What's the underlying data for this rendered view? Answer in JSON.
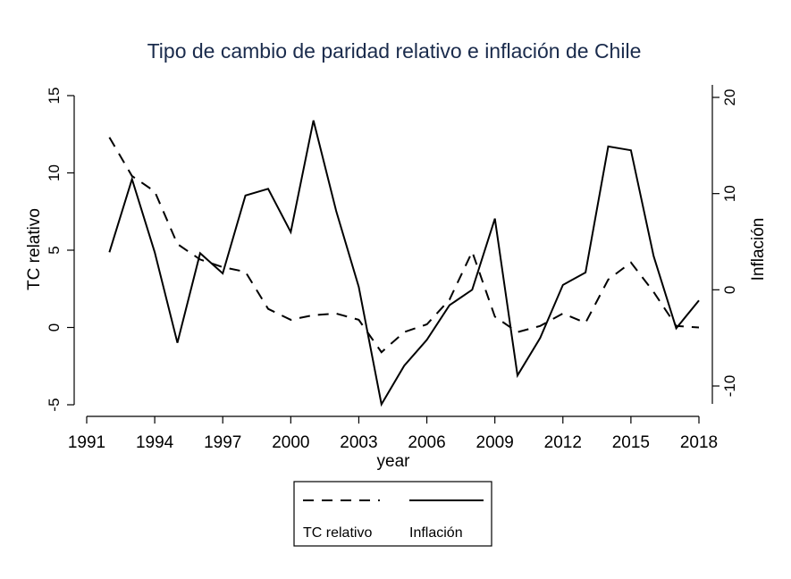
{
  "chart_data": {
    "type": "line",
    "title": "Tipo de cambio de paridad relativo e inflación de Chile",
    "xlabel": "year",
    "ylabel": "TC relativo",
    "y2label": "Inflación",
    "xlim": [
      1991,
      2018
    ],
    "ylim": [
      -5,
      15
    ],
    "y2lim": [
      -10,
      20
    ],
    "x_ticks": [
      1991,
      1994,
      1997,
      2000,
      2003,
      2006,
      2009,
      2012,
      2015,
      2018
    ],
    "y_ticks": [
      -5,
      0,
      5,
      10,
      15
    ],
    "y2_ticks": [
      -10,
      0,
      10,
      20
    ],
    "grid": false,
    "legend_position": "bottom",
    "x": [
      1992,
      1993,
      1994,
      1995,
      1996,
      1997,
      1998,
      1999,
      2000,
      2001,
      2002,
      2003,
      2004,
      2005,
      2006,
      2007,
      2008,
      2009,
      2010,
      2011,
      2012,
      2013,
      2014,
      2015,
      2016,
      2017,
      2018
    ],
    "series": [
      {
        "name": "TC relativo",
        "axis": "left",
        "style": "dashed",
        "values": [
          12.3,
          9.8,
          8.8,
          5.4,
          4.4,
          3.9,
          3.6,
          1.2,
          0.5,
          0.8,
          0.9,
          0.5,
          -1.6,
          -0.3,
          0.2,
          1.8,
          4.9,
          0.7,
          -0.3,
          0.1,
          0.9,
          0.3,
          3.1,
          4.2,
          2.3,
          0.1,
          0.0
        ]
      },
      {
        "name": "Inflación",
        "axis": "right",
        "style": "solid",
        "values": [
          3.9,
          11.5,
          3.9,
          -5.5,
          3.8,
          1.7,
          9.8,
          10.5,
          6.0,
          17.6,
          8.2,
          0.3,
          -11.9,
          -7.9,
          -5.2,
          -1.6,
          0.0,
          7.4,
          -8.9,
          -5.0,
          0.5,
          1.8,
          14.9,
          14.5,
          3.5,
          -4.0,
          -1.1
        ]
      }
    ]
  }
}
